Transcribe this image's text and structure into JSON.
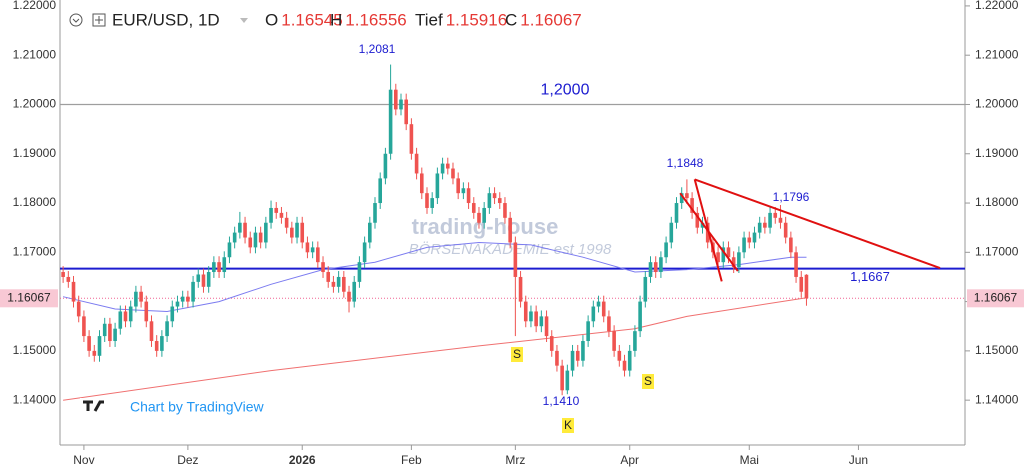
{
  "chart_data": {
    "type": "candlestick",
    "symbol": "EUR/USD, 1D",
    "ohlc_legend": [
      {
        "label": "O",
        "value": 1.16545
      },
      {
        "label": "H",
        "value": 1.16556
      },
      {
        "label": "Tief",
        "value": 1.15916
      },
      {
        "label": "C",
        "value": 1.16067
      }
    ],
    "up_color": "#26a69a",
    "down_color": "#ef5350",
    "ylim": [
      1.1309,
      1.2212
    ],
    "yticks": [
      {
        "value": 1.14,
        "label": "1.14000"
      },
      {
        "value": 1.15,
        "label": "1.15000"
      },
      {
        "value": 1.16,
        "label": "1.16000"
      },
      {
        "value": 1.17,
        "label": "1.17000"
      },
      {
        "value": 1.18,
        "label": "1.18000"
      },
      {
        "value": 1.19,
        "label": "1.19000"
      },
      {
        "value": 1.2,
        "label": "1.20000"
      },
      {
        "value": 1.21,
        "label": "1.21000"
      },
      {
        "value": 1.22,
        "label": "1.22000"
      }
    ],
    "xlim": [
      -0.6,
      173.5
    ],
    "xticks": [
      {
        "value": 4,
        "label": "Nov"
      },
      {
        "value": 24,
        "label": "Dez"
      },
      {
        "value": 46,
        "label": "2026"
      },
      {
        "value": 67,
        "label": "Feb"
      },
      {
        "value": 87,
        "label": "Mrz"
      },
      {
        "value": 109,
        "label": "Apr"
      },
      {
        "value": 132,
        "label": "Mai"
      },
      {
        "value": 153,
        "label": "Jun"
      }
    ],
    "candles": [
      [
        1.166,
        1.1672,
        1.1638,
        1.165
      ],
      [
        1.165,
        1.1662,
        1.1628,
        1.164
      ],
      [
        1.164,
        1.1652,
        1.1588,
        1.16
      ],
      [
        1.16,
        1.1612,
        1.1558,
        1.157
      ],
      [
        1.157,
        1.1582,
        1.1518,
        1.153
      ],
      [
        1.153,
        1.1542,
        1.1488,
        1.15
      ],
      [
        1.15,
        1.1512,
        1.1478,
        1.149
      ],
      [
        1.149,
        1.1542,
        1.1478,
        1.153
      ],
      [
        1.153,
        1.1567,
        1.1518,
        1.1555
      ],
      [
        1.1555,
        1.1567,
        1.1508,
        1.152
      ],
      [
        1.152,
        1.1557,
        1.1508,
        1.1545
      ],
      [
        1.1545,
        1.1592,
        1.1533,
        1.158
      ],
      [
        1.158,
        1.1592,
        1.1548,
        1.156
      ],
      [
        1.156,
        1.1602,
        1.1548,
        1.159
      ],
      [
        1.159,
        1.1632,
        1.1578,
        1.162
      ],
      [
        1.162,
        1.1632,
        1.1588,
        1.16
      ],
      [
        1.16,
        1.1612,
        1.1548,
        1.156
      ],
      [
        1.156,
        1.1572,
        1.1508,
        1.152
      ],
      [
        1.152,
        1.1532,
        1.1488,
        1.15
      ],
      [
        1.15,
        1.1542,
        1.1488,
        1.153
      ],
      [
        1.153,
        1.1572,
        1.1518,
        1.156
      ],
      [
        1.156,
        1.1602,
        1.1548,
        1.159
      ],
      [
        1.159,
        1.1612,
        1.1578,
        1.16
      ],
      [
        1.16,
        1.1622,
        1.1588,
        1.161
      ],
      [
        1.161,
        1.1622,
        1.1588,
        1.16
      ],
      [
        1.16,
        1.1652,
        1.1588,
        1.164
      ],
      [
        1.164,
        1.1667,
        1.1628,
        1.1655
      ],
      [
        1.1655,
        1.1667,
        1.1618,
        1.163
      ],
      [
        1.163,
        1.1672,
        1.1618,
        1.166
      ],
      [
        1.166,
        1.1692,
        1.1648,
        1.168
      ],
      [
        1.168,
        1.1692,
        1.1648,
        1.166
      ],
      [
        1.166,
        1.1702,
        1.1648,
        1.169
      ],
      [
        1.169,
        1.1732,
        1.1678,
        1.172
      ],
      [
        1.172,
        1.1752,
        1.1708,
        1.174
      ],
      [
        1.174,
        1.1782,
        1.1728,
        1.176
      ],
      [
        1.176,
        1.1772,
        1.1718,
        1.173
      ],
      [
        1.173,
        1.1742,
        1.1698,
        1.171
      ],
      [
        1.171,
        1.1752,
        1.1698,
        1.174
      ],
      [
        1.174,
        1.1752,
        1.1708,
        1.172
      ],
      [
        1.172,
        1.1772,
        1.1708,
        1.176
      ],
      [
        1.176,
        1.1805,
        1.1748,
        1.179
      ],
      [
        1.179,
        1.1802,
        1.1768,
        1.178
      ],
      [
        1.178,
        1.1792,
        1.1758,
        1.177
      ],
      [
        1.177,
        1.1782,
        1.1738,
        1.175
      ],
      [
        1.175,
        1.1762,
        1.1718,
        1.173
      ],
      [
        1.173,
        1.1772,
        1.1718,
        1.176
      ],
      [
        1.176,
        1.1772,
        1.1708,
        1.172
      ],
      [
        1.172,
        1.1732,
        1.1688,
        1.17
      ],
      [
        1.17,
        1.1722,
        1.1688,
        1.171
      ],
      [
        1.171,
        1.1722,
        1.1668,
        1.168
      ],
      [
        1.168,
        1.1692,
        1.1648,
        1.166
      ],
      [
        1.166,
        1.1672,
        1.1628,
        1.164
      ],
      [
        1.164,
        1.1652,
        1.1618,
        1.163
      ],
      [
        1.163,
        1.1662,
        1.1618,
        1.165
      ],
      [
        1.165,
        1.1662,
        1.1608,
        1.162
      ],
      [
        1.162,
        1.1632,
        1.1578,
        1.16
      ],
      [
        1.16,
        1.1652,
        1.1588,
        1.164
      ],
      [
        1.164,
        1.1692,
        1.1628,
        1.168
      ],
      [
        1.168,
        1.1732,
        1.1668,
        1.172
      ],
      [
        1.172,
        1.1772,
        1.1708,
        1.176
      ],
      [
        1.176,
        1.1812,
        1.1748,
        1.18
      ],
      [
        1.18,
        1.1862,
        1.1788,
        1.185
      ],
      [
        1.185,
        1.1912,
        1.1838,
        1.19
      ],
      [
        1.19,
        1.2081,
        1.1888,
        1.203
      ],
      [
        1.203,
        1.2042,
        1.1978,
        1.199
      ],
      [
        1.199,
        1.2022,
        1.1978,
        1.201
      ],
      [
        1.201,
        1.2022,
        1.1948,
        1.196
      ],
      [
        1.196,
        1.1972,
        1.1888,
        1.19
      ],
      [
        1.19,
        1.1912,
        1.1848,
        1.186
      ],
      [
        1.186,
        1.1872,
        1.1808,
        1.182
      ],
      [
        1.182,
        1.1832,
        1.1778,
        1.179
      ],
      [
        1.179,
        1.1822,
        1.1778,
        1.181
      ],
      [
        1.181,
        1.1872,
        1.1798,
        1.186
      ],
      [
        1.186,
        1.1892,
        1.1848,
        1.188
      ],
      [
        1.188,
        1.1892,
        1.1858,
        1.187
      ],
      [
        1.187,
        1.1882,
        1.1838,
        1.185
      ],
      [
        1.185,
        1.1862,
        1.1808,
        1.182
      ],
      [
        1.182,
        1.1842,
        1.1808,
        1.183
      ],
      [
        1.183,
        1.1842,
        1.1788,
        1.18
      ],
      [
        1.18,
        1.1812,
        1.1768,
        1.178
      ],
      [
        1.178,
        1.1792,
        1.1748,
        1.176
      ],
      [
        1.176,
        1.1802,
        1.1748,
        1.179
      ],
      [
        1.179,
        1.1832,
        1.1778,
        1.182
      ],
      [
        1.182,
        1.1832,
        1.1798,
        1.181
      ],
      [
        1.181,
        1.1822,
        1.1788,
        1.18
      ],
      [
        1.18,
        1.1812,
        1.1758,
        1.177
      ],
      [
        1.177,
        1.1782,
        1.1708,
        1.172
      ],
      [
        1.172,
        1.1732,
        1.153,
        1.165
      ],
      [
        1.165,
        1.1662,
        1.1588,
        1.16
      ],
      [
        1.16,
        1.1612,
        1.1548,
        1.156
      ],
      [
        1.156,
        1.1592,
        1.1548,
        1.158
      ],
      [
        1.158,
        1.1592,
        1.1538,
        1.155
      ],
      [
        1.155,
        1.1582,
        1.1538,
        1.157
      ],
      [
        1.157,
        1.1582,
        1.1518,
        1.153
      ],
      [
        1.153,
        1.1542,
        1.1488,
        1.15
      ],
      [
        1.15,
        1.1512,
        1.1458,
        1.147
      ],
      [
        1.147,
        1.1482,
        1.141,
        1.142
      ],
      [
        1.142,
        1.1472,
        1.1412,
        1.146
      ],
      [
        1.146,
        1.1512,
        1.1448,
        1.15
      ],
      [
        1.15,
        1.1512,
        1.1468,
        1.148
      ],
      [
        1.148,
        1.1532,
        1.1468,
        1.152
      ],
      [
        1.152,
        1.1572,
        1.1508,
        1.156
      ],
      [
        1.156,
        1.1602,
        1.1548,
        1.159
      ],
      [
        1.159,
        1.1612,
        1.1578,
        1.16
      ],
      [
        1.16,
        1.1612,
        1.1558,
        1.157
      ],
      [
        1.157,
        1.1582,
        1.1528,
        1.154
      ],
      [
        1.154,
        1.1552,
        1.1488,
        1.15
      ],
      [
        1.15,
        1.1512,
        1.1468,
        1.148
      ],
      [
        1.148,
        1.1492,
        1.1448,
        1.146
      ],
      [
        1.146,
        1.1512,
        1.1448,
        1.15
      ],
      [
        1.15,
        1.1552,
        1.1488,
        1.154
      ],
      [
        1.154,
        1.1612,
        1.1528,
        1.16
      ],
      [
        1.16,
        1.1662,
        1.1588,
        1.165
      ],
      [
        1.165,
        1.1692,
        1.1638,
        1.168
      ],
      [
        1.168,
        1.1692,
        1.1648,
        1.166
      ],
      [
        1.166,
        1.1702,
        1.1648,
        1.169
      ],
      [
        1.169,
        1.1732,
        1.1678,
        1.172
      ],
      [
        1.172,
        1.1772,
        1.1708,
        1.176
      ],
      [
        1.176,
        1.1812,
        1.1748,
        1.18
      ],
      [
        1.18,
        1.1832,
        1.1788,
        1.182
      ],
      [
        1.182,
        1.1848,
        1.1798,
        1.181
      ],
      [
        1.181,
        1.1822,
        1.1768,
        1.178
      ],
      [
        1.178,
        1.1792,
        1.1738,
        1.175
      ],
      [
        1.175,
        1.1772,
        1.1738,
        1.176
      ],
      [
        1.176,
        1.1772,
        1.1708,
        1.172
      ],
      [
        1.172,
        1.1732,
        1.1688,
        1.17
      ],
      [
        1.17,
        1.1712,
        1.1668,
        1.168
      ],
      [
        1.168,
        1.1722,
        1.1668,
        1.171
      ],
      [
        1.171,
        1.1722,
        1.1678,
        1.169
      ],
      [
        1.169,
        1.1702,
        1.1658,
        1.167
      ],
      [
        1.167,
        1.1712,
        1.1658,
        1.17
      ],
      [
        1.17,
        1.1742,
        1.1688,
        1.173
      ],
      [
        1.173,
        1.1742,
        1.1708,
        1.172
      ],
      [
        1.172,
        1.1752,
        1.1708,
        1.174
      ],
      [
        1.174,
        1.1772,
        1.1728,
        1.176
      ],
      [
        1.176,
        1.1772,
        1.1738,
        1.175
      ],
      [
        1.175,
        1.1792,
        1.1738,
        1.178
      ],
      [
        1.178,
        1.1792,
        1.1758,
        1.177
      ],
      [
        1.177,
        1.1796,
        1.1748,
        1.176
      ],
      [
        1.176,
        1.1772,
        1.1718,
        1.173
      ],
      [
        1.173,
        1.1742,
        1.1688,
        1.17
      ],
      [
        1.17,
        1.1712,
        1.1638,
        1.165
      ],
      [
        1.165,
        1.1662,
        1.1608,
        1.162
      ],
      [
        1.16545,
        1.16556,
        1.15916,
        1.16067
      ]
    ],
    "moving_averages": [
      {
        "color": "#7b7bf0",
        "x": [
          0,
          10,
          20,
          30,
          40,
          50,
          60,
          70,
          80,
          90,
          100,
          110,
          120,
          130,
          140,
          143
        ],
        "values": [
          1.161,
          1.1585,
          1.158,
          1.16,
          1.1635,
          1.1665,
          1.168,
          1.171,
          1.172,
          1.1715,
          1.169,
          1.166,
          1.1665,
          1.1675,
          1.169,
          1.169
        ]
      },
      {
        "color": "#f07070",
        "x": [
          0,
          40,
          80,
          110,
          120,
          143
        ],
        "values": [
          1.14,
          1.146,
          1.151,
          1.1545,
          1.157,
          1.1608
        ]
      }
    ],
    "levels": [
      {
        "value": 1.2,
        "label": "1,2000",
        "color": "#9e9e9e"
      },
      {
        "value": 1.1667,
        "label": "1,1667",
        "color": "#1c1cd0"
      }
    ],
    "trendlines": [
      {
        "x": [
          121.5,
          168.7
        ],
        "y": [
          1.1848,
          1.1668
        ],
        "color": "#e01010"
      },
      {
        "x": [
          121.5,
          126.7
        ],
        "y": [
          1.1848,
          1.1641
        ],
        "color": "#e01010"
      },
      {
        "x": [
          118.7,
          129.8
        ],
        "y": [
          1.182,
          1.1662
        ],
        "color": "#e01010"
      }
    ],
    "annotations": [
      "1,2081",
      "1,1848",
      "1,1796",
      "1,1410",
      "S",
      "S",
      "K"
    ],
    "watermark": [
      "trading-house",
      "BÖRSENAKADEMIE est 1998"
    ],
    "credit": "Chart by TradingView"
  }
}
